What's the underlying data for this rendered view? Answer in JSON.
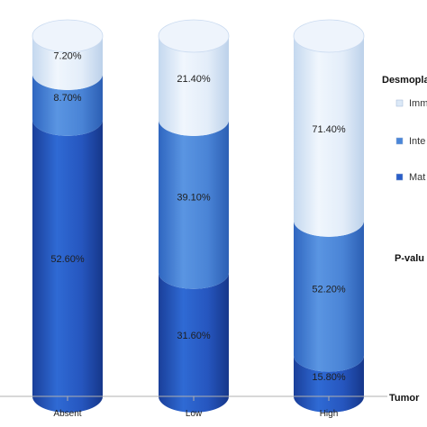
{
  "chart_data": {
    "type": "bar",
    "stacked": true,
    "orientation": "vertical",
    "style": "3d-cylinder",
    "categories": [
      "Absent",
      "Low",
      "High"
    ],
    "series": [
      {
        "name": "Mat",
        "color": "#2a5ec8",
        "values": [
          52.6,
          31.6,
          15.8
        ],
        "labels": [
          "52.60%",
          "31.60%",
          "15.80%"
        ]
      },
      {
        "name": "Inte",
        "color": "#4a86d8",
        "values": [
          8.7,
          39.1,
          52.2
        ],
        "labels": [
          "8.70%",
          "39.10%",
          "52.20%"
        ]
      },
      {
        "name": "Imm",
        "color": "#dce9f7",
        "values": [
          7.2,
          21.4,
          71.4
        ],
        "labels": [
          "7.20%",
          "21.40%",
          "71.40%"
        ]
      }
    ],
    "legend_title": "Desmopla",
    "pvalue_label": "P-valu",
    "xlabel": "Tumor",
    "legend_position": "right"
  }
}
